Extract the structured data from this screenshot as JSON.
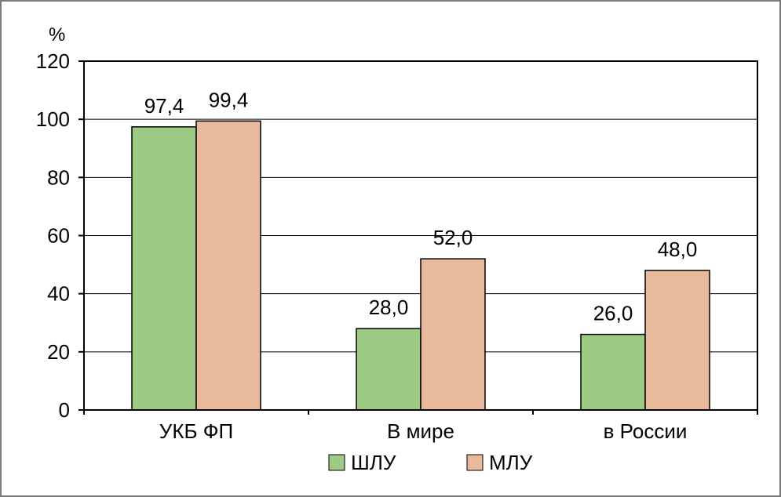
{
  "chart_data": {
    "type": "bar",
    "unit": "%",
    "categories": [
      "УКБ ФП",
      "В мире",
      "в России"
    ],
    "series": [
      {
        "name": "ШЛУ",
        "color": "#9ecb84",
        "values": [
          97.4,
          28.0,
          26.0
        ],
        "labels": [
          "97,4",
          "28,0",
          "26,0"
        ]
      },
      {
        "name": "МЛУ",
        "color": "#e8b99b",
        "values": [
          99.4,
          52.0,
          48.0
        ],
        "labels": [
          "99,4",
          "52,0",
          "48,0"
        ]
      }
    ],
    "ylim": [
      0,
      120
    ],
    "yticks": [
      "0",
      "20",
      "40",
      "60",
      "80",
      "100",
      "120"
    ],
    "ytick_values": [
      0,
      20,
      40,
      60,
      80,
      100,
      120
    ],
    "grid": true,
    "legend_position": "bottom"
  }
}
